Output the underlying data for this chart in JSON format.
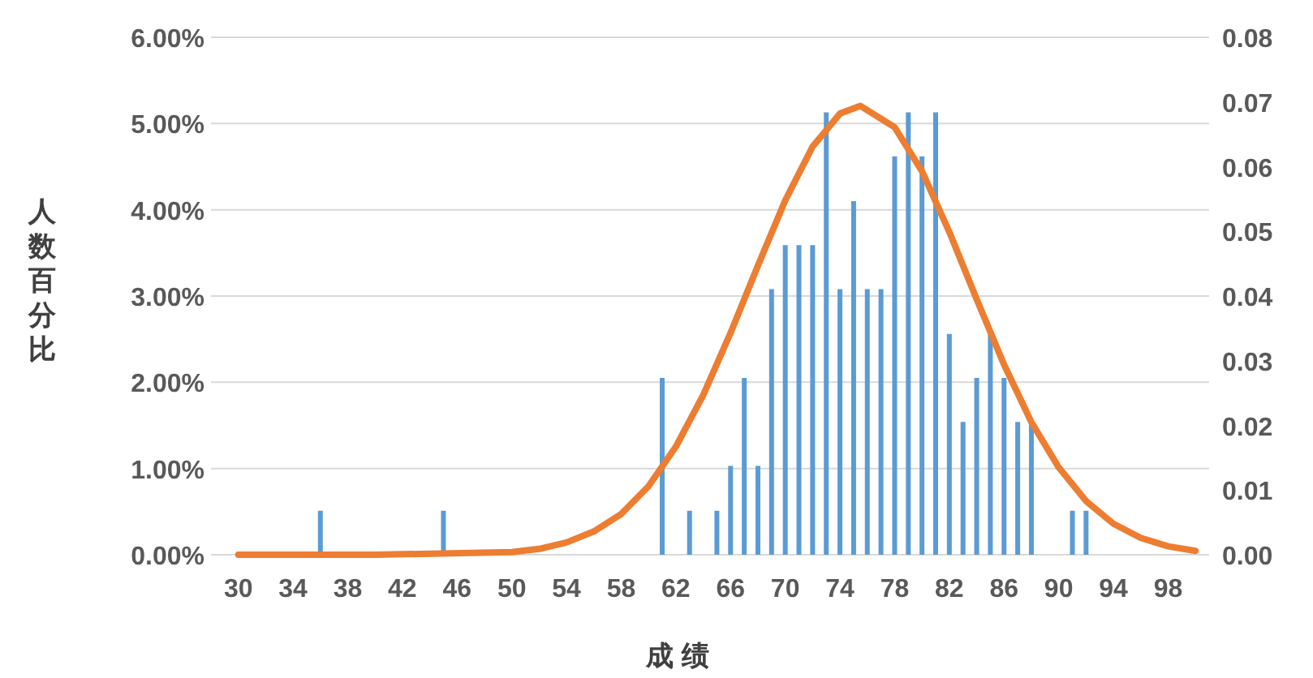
{
  "chart_data": {
    "type": "bar",
    "xlabel": "成 绩",
    "ylabel": "人数百分比",
    "xlim": [
      28,
      101
    ],
    "xticks": [
      30,
      34,
      38,
      42,
      46,
      50,
      54,
      58,
      62,
      66,
      70,
      74,
      78,
      82,
      86,
      90,
      94,
      98
    ],
    "ylim": [
      0,
      6
    ],
    "yticks": [
      {
        "value": 0,
        "label": "0.00%"
      },
      {
        "value": 1,
        "label": "1.00%"
      },
      {
        "value": 2,
        "label": "2.00%"
      },
      {
        "value": 3,
        "label": "3.00%"
      },
      {
        "value": 4,
        "label": "4.00%"
      },
      {
        "value": 5,
        "label": "5.00%"
      },
      {
        "value": 6,
        "label": "6.00%"
      }
    ],
    "y2lim": [
      0,
      0.08
    ],
    "y2ticks": [
      {
        "value": 0,
        "label": "0.00"
      },
      {
        "value": 0.01,
        "label": "0.01"
      },
      {
        "value": 0.02,
        "label": "0.02"
      },
      {
        "value": 0.03,
        "label": "0.03"
      },
      {
        "value": 0.04,
        "label": "0.04"
      },
      {
        "value": 0.05,
        "label": "0.05"
      },
      {
        "value": 0.06,
        "label": "0.06"
      },
      {
        "value": 0.07,
        "label": "0.07"
      },
      {
        "value": 0.08,
        "label": "0.08"
      }
    ],
    "grid": "y",
    "series": [
      {
        "color": "#5b9bd5",
        "x": [
          36,
          45,
          61,
          63,
          65,
          66,
          67,
          68,
          69,
          70,
          71,
          72,
          73,
          74,
          75,
          76,
          77,
          78,
          79,
          80,
          81,
          82,
          83,
          84,
          85,
          86,
          87,
          88,
          91,
          92
        ],
        "values": [
          0.51,
          0.51,
          2.05,
          0.51,
          0.51,
          1.03,
          2.05,
          1.03,
          3.08,
          3.59,
          3.59,
          3.59,
          5.13,
          3.08,
          4.1,
          3.08,
          3.08,
          4.62,
          5.13,
          4.62,
          5.13,
          2.56,
          1.54,
          2.05,
          2.56,
          2.05,
          1.54,
          1.54,
          0.51,
          0.51
        ]
      },
      {
        "type": "line",
        "axis": "y2",
        "color": "#ed7d31",
        "x": [
          30,
          40,
          50,
          52,
          54,
          56,
          58,
          60,
          62,
          64,
          66,
          68,
          70,
          72,
          74,
          75.5,
          78,
          80,
          82,
          84,
          86,
          88,
          90,
          92,
          94,
          96,
          98,
          100
        ],
        "values": [
          0,
          0,
          0.0004,
          0.0009,
          0.0019,
          0.0036,
          0.0063,
          0.0106,
          0.0167,
          0.0247,
          0.0343,
          0.0447,
          0.0548,
          0.0631,
          0.0682,
          0.0694,
          0.0661,
          0.0593,
          0.0499,
          0.0395,
          0.0294,
          0.0205,
          0.0135,
          0.0083,
          0.0048,
          0.0026,
          0.0013,
          0.0006
        ]
      }
    ]
  }
}
